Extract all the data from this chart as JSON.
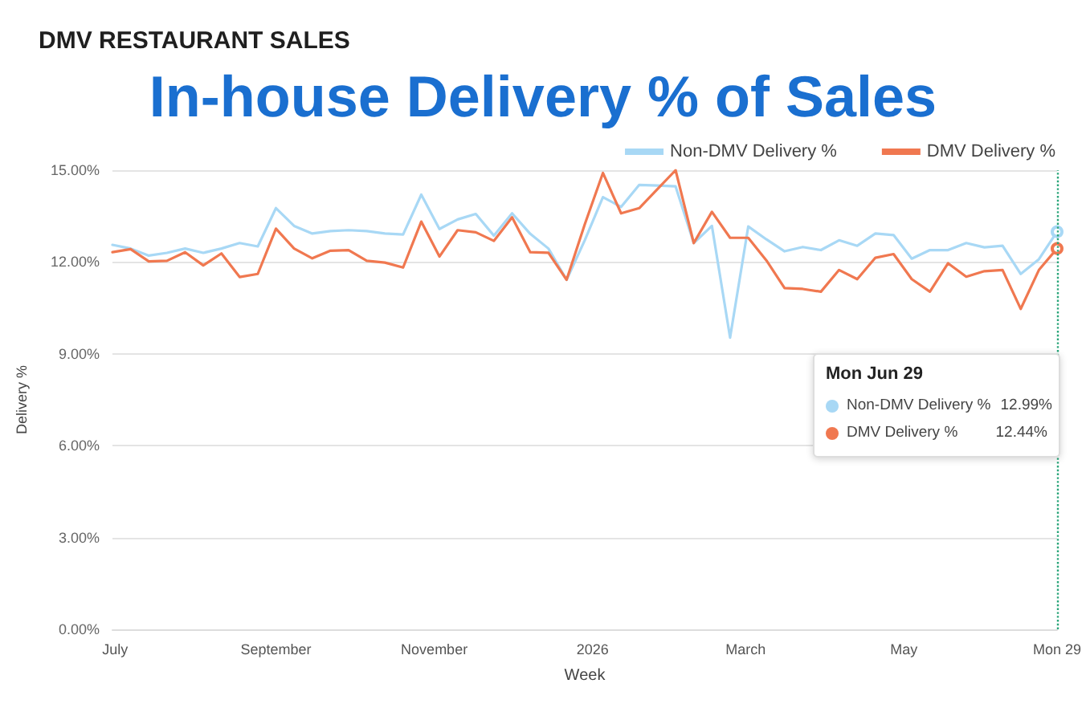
{
  "chart_data": {
    "type": "line",
    "subtitle": "DMV RESTAURANT SALES",
    "title": "In-house Delivery % of Sales",
    "xlabel": "Week",
    "ylabel": "Delivery %",
    "x": [
      "2025-06-30",
      "2025-07-07",
      "2025-07-14",
      "2025-07-21",
      "2025-07-28",
      "2025-08-04",
      "2025-08-11",
      "2025-08-18",
      "2025-08-25",
      "2025-09-01",
      "2025-09-08",
      "2025-09-15",
      "2025-09-22",
      "2025-09-29",
      "2025-10-06",
      "2025-10-13",
      "2025-10-20",
      "2025-10-27",
      "2025-11-03",
      "2025-11-10",
      "2025-11-17",
      "2025-11-24",
      "2025-12-01",
      "2025-12-08",
      "2025-12-15",
      "2025-12-22",
      "2025-12-29",
      "2026-01-05",
      "2026-01-12",
      "2026-01-19",
      "2026-01-26",
      "2026-02-02",
      "2026-02-09",
      "2026-02-16",
      "2026-02-23",
      "2026-03-02",
      "2026-03-09",
      "2026-03-16",
      "2026-03-23",
      "2026-03-30",
      "2026-04-06",
      "2026-04-13",
      "2026-04-20",
      "2026-04-27",
      "2026-05-04",
      "2026-05-11",
      "2026-05-18",
      "2026-05-25",
      "2026-06-01",
      "2026-06-08",
      "2026-06-15",
      "2026-06-22",
      "2026-06-29"
    ],
    "series": [
      {
        "name": "Non-DMV Delivery %",
        "color": "#a8d8f5",
        "values": [
          12.56,
          12.44,
          12.21,
          12.3,
          12.44,
          12.3,
          12.44,
          12.62,
          12.51,
          13.76,
          13.18,
          12.93,
          13.01,
          13.04,
          13.01,
          12.93,
          12.9,
          14.2,
          13.08,
          13.39,
          13.57,
          12.86,
          13.59,
          12.92,
          12.44,
          11.42,
          12.71,
          14.12,
          13.8,
          14.52,
          14.5,
          14.47,
          12.62,
          13.18,
          9.53,
          13.16,
          12.74,
          12.35,
          12.49,
          12.39,
          12.71,
          12.53,
          12.93,
          12.88,
          12.11,
          12.39,
          12.39,
          12.62,
          12.48,
          12.53,
          11.61,
          12.09,
          12.99
        ]
      },
      {
        "name": "DMV Delivery %",
        "color": "#f07850",
        "values": [
          12.32,
          12.42,
          12.02,
          12.04,
          12.32,
          11.89,
          12.28,
          11.51,
          11.61,
          13.09,
          12.44,
          12.12,
          12.37,
          12.39,
          12.04,
          11.98,
          11.82,
          13.32,
          12.18,
          13.04,
          12.97,
          12.69,
          13.46,
          12.32,
          12.3,
          11.42,
          13.23,
          14.91,
          13.59,
          13.76,
          14.38,
          15.0,
          12.62,
          13.64,
          12.79,
          12.79,
          12.05,
          11.15,
          11.12,
          11.03,
          11.74,
          11.44,
          12.14,
          12.26,
          11.44,
          11.03,
          11.96,
          11.52,
          11.7,
          11.74,
          10.47,
          11.74,
          12.44
        ]
      }
    ],
    "annotations": [
      "Mon Jun 29",
      "Non-DMV Delivery %",
      "12.99%",
      "DMV Delivery %",
      "12.44%"
    ],
    "ref_lines": [
      {
        "axis": "x",
        "value": "2026-06-29",
        "color": "#2aa57a",
        "line_style": "dotted"
      }
    ],
    "xlim": [
      "2025-06-30",
      "2026-06-29"
    ],
    "xticks": [
      {
        "value": "2025-07-01",
        "label": "July"
      },
      {
        "value": "2025-09-01",
        "label": "September"
      },
      {
        "value": "2025-11-01",
        "label": "November"
      },
      {
        "value": "2026-01-01",
        "label": "2026"
      },
      {
        "value": "2026-03-01",
        "label": "March"
      },
      {
        "value": "2026-05-01",
        "label": "May"
      },
      {
        "value": "2026-06-29",
        "label": "Mon 29"
      }
    ],
    "ylim": [
      0,
      15
    ],
    "yticks": [
      {
        "value": 0,
        "label": "0.00%"
      },
      {
        "value": 3,
        "label": "3.00%"
      },
      {
        "value": 6,
        "label": "6.00%"
      },
      {
        "value": 9,
        "label": "9.00%"
      },
      {
        "value": 12,
        "label": "12.00%"
      },
      {
        "value": 15,
        "label": "15.00%"
      }
    ],
    "grid": "y",
    "legend": "top right",
    "marker": "none",
    "line_style": "solid"
  }
}
